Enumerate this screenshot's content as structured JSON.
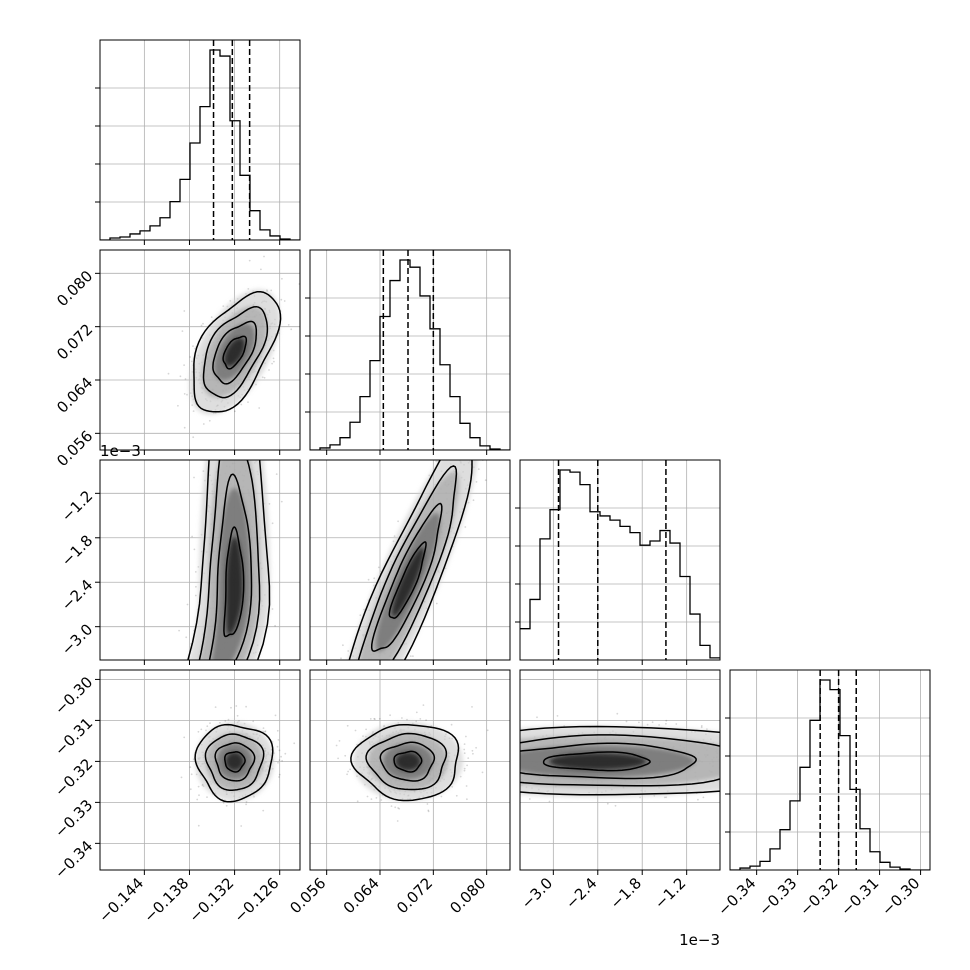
{
  "chart_data": {
    "type": "corner",
    "parameters": [
      {
        "ticks": [
          -0.144,
          -0.138,
          -0.132,
          -0.126
        ],
        "tick_labels": [
          "−0.144",
          "−0.138",
          "−0.132",
          "−0.126"
        ],
        "range": [
          -0.1499,
          -0.1233
        ],
        "quantiles": [
          -0.1348,
          -0.1323,
          -0.13
        ],
        "offset_label": ""
      },
      {
        "ticks": [
          0.056,
          0.064,
          0.072,
          0.08
        ],
        "tick_labels": [
          "0.056",
          "0.064",
          "0.072",
          "0.080"
        ],
        "range": [
          0.0535,
          0.0835
        ],
        "quantiles": [
          0.0645,
          0.0682,
          0.072
        ],
        "offset_label": ""
      },
      {
        "ticks": [
          -3.0,
          -2.4,
          -1.8,
          -1.2
        ],
        "tick_labels": [
          "−3.0",
          "−2.4",
          "−1.8",
          "−1.2"
        ],
        "range": [
          -3.45,
          -0.75
        ],
        "quantiles": [
          -2.93,
          -2.4,
          -1.48
        ],
        "offset_label": "1e−3"
      },
      {
        "ticks": [
          -0.34,
          -0.33,
          -0.32,
          -0.31,
          -0.3
        ],
        "tick_labels": [
          "−0.34",
          "−0.33",
          "−0.32",
          "−0.31",
          "−0.30"
        ],
        "range": [
          -0.3465,
          -0.2977
        ],
        "quantiles": [
          -0.3245,
          -0.32,
          -0.3157
        ],
        "offset_label": ""
      }
    ],
    "histograms": [
      {
        "bin_edges_range": [
          -0.1499,
          -0.1233
        ],
        "counts": [
          0,
          2,
          3,
          6,
          9,
          14,
          22,
          38,
          60,
          96,
          132,
          188,
          182,
          118,
          64,
          29,
          10,
          4,
          1,
          0
        ]
      },
      {
        "bin_edges_range": [
          0.0535,
          0.0835
        ],
        "counts": [
          0,
          2,
          5,
          12,
          27,
          52,
          87,
          130,
          165,
          185,
          178,
          150,
          118,
          83,
          52,
          26,
          12,
          4,
          1,
          0
        ]
      },
      {
        "bin_edges_range": [
          -3.45,
          -0.75
        ],
        "counts": [
          15,
          29,
          58,
          72,
          91,
          90,
          84,
          71,
          69,
          67,
          64,
          61,
          55,
          57,
          62,
          56,
          40,
          22,
          7,
          1
        ]
      },
      {
        "bin_edges_range": [
          -0.3465,
          -0.2977
        ],
        "counts": [
          0,
          2,
          4,
          9,
          22,
          42,
          72,
          107,
          156,
          198,
          188,
          140,
          84,
          43,
          19,
          8,
          3,
          1,
          0,
          0
        ]
      }
    ],
    "pair_panels": [
      {
        "row": 1,
        "col": 0,
        "center": [
          -0.132,
          0.0682
        ],
        "shape": "tilted-ellipse",
        "correlation": 0.7
      },
      {
        "row": 2,
        "col": 0,
        "center": [
          -0.132,
          -2.45
        ],
        "shape": "curved-banana"
      },
      {
        "row": 2,
        "col": 1,
        "center": [
          0.0682,
          -2.4
        ],
        "shape": "elongated-diagonal",
        "correlation": 0.9
      },
      {
        "row": 3,
        "col": 0,
        "center": [
          -0.132,
          -0.32
        ],
        "shape": "ellipse",
        "correlation": 0.0
      },
      {
        "row": 3,
        "col": 1,
        "center": [
          0.0682,
          -0.32
        ],
        "shape": "ellipse",
        "correlation": 0.0
      },
      {
        "row": 3,
        "col": 2,
        "center": [
          -2.4,
          -0.32
        ],
        "shape": "horizontal-band",
        "correlation": 0.0
      }
    ],
    "grid": true,
    "quantile_line_style": "dashed",
    "title": "",
    "xlabel": "",
    "ylabel": ""
  }
}
